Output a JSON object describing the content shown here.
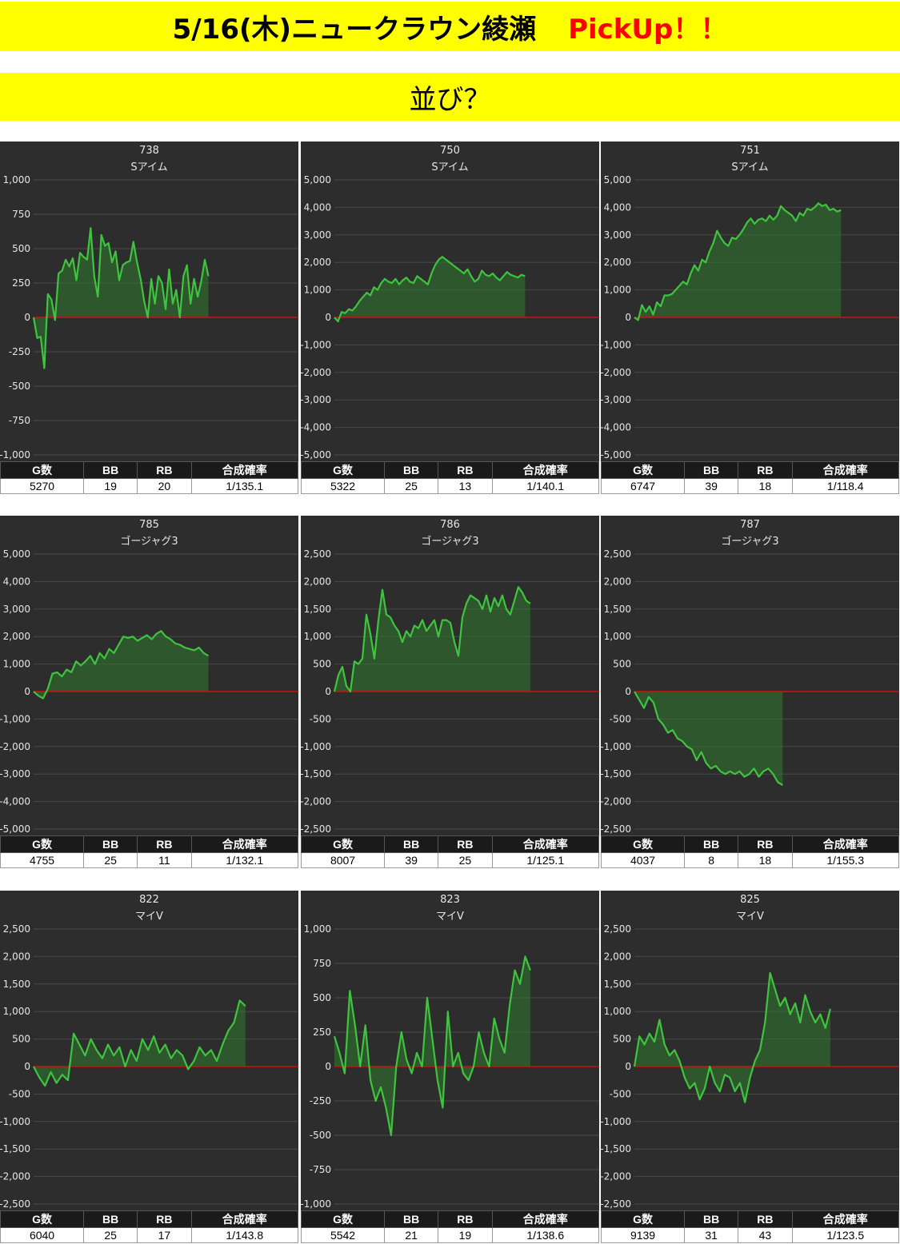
{
  "header": {
    "title": "5/16(木)ニュークラウン綾瀬",
    "pickup": "PickUp！！",
    "subtitle": "並び？"
  },
  "colors": {
    "banner": "#ffff00",
    "pickup_text": "#ff0000",
    "chart_bg": "#2d2d2d",
    "grid": "#4a4a4a",
    "zero_line": "#cc1111",
    "series_line": "#3ec43e",
    "series_fill": "#2f7a2f"
  },
  "table_headers": [
    "G数",
    "BB",
    "RB",
    "合成確率"
  ],
  "chart_data": [
    {
      "type": "area",
      "machine_no": "738",
      "machine_name": "Sアイム",
      "ylim": [
        -1000,
        1000
      ],
      "yticks": [
        1000,
        750,
        500,
        250,
        0,
        -250,
        -500,
        -750,
        -1000
      ],
      "tick_labels": [
        "1,000",
        "750",
        "500",
        "250",
        "0",
        "-250",
        "-500",
        "-750",
        "-1,000"
      ],
      "x_end": 0.66,
      "y": [
        0,
        -150,
        -140,
        -370,
        170,
        130,
        -20,
        320,
        340,
        420,
        370,
        430,
        270,
        470,
        440,
        420,
        650,
        300,
        150,
        600,
        520,
        540,
        400,
        480,
        270,
        380,
        400,
        410,
        550,
        400,
        280,
        120,
        0,
        280,
        100,
        300,
        250,
        60,
        350,
        100,
        200,
        0,
        300,
        380,
        100,
        280,
        150,
        260,
        420,
        300
      ],
      "stats": {
        "games": "5270",
        "bb": "19",
        "rb": "20",
        "prob": "1/135.1"
      }
    },
    {
      "type": "area",
      "machine_no": "750",
      "machine_name": "Sアイム",
      "ylim": [
        -5000,
        5000
      ],
      "yticks": [
        5000,
        4000,
        3000,
        2000,
        1000,
        0,
        -1000,
        -2000,
        -3000,
        -4000,
        -5000
      ],
      "tick_labels": [
        "5,000",
        "4,000",
        "3,000",
        "2,000",
        "1,000",
        "0",
        "-1,000",
        "-2,000",
        "-3,000",
        "-4,000",
        "-5,000"
      ],
      "x_end": 0.72,
      "y": [
        0,
        -150,
        200,
        150,
        300,
        250,
        400,
        600,
        750,
        900,
        800,
        1100,
        1000,
        1250,
        1400,
        1300,
        1250,
        1400,
        1200,
        1350,
        1450,
        1300,
        1250,
        1500,
        1400,
        1300,
        1200,
        1600,
        1900,
        2100,
        2200,
        2100,
        2000,
        1900,
        1800,
        1700,
        1600,
        1750,
        1500,
        1300,
        1400,
        1700,
        1550,
        1500,
        1600,
        1450,
        1350,
        1500,
        1650,
        1550,
        1500,
        1450,
        1550,
        1500
      ],
      "stats": {
        "games": "5322",
        "bb": "25",
        "rb": "13",
        "prob": "1/140.1"
      }
    },
    {
      "type": "area",
      "machine_no": "751",
      "machine_name": "Sアイム",
      "ylim": [
        -5000,
        5000
      ],
      "yticks": [
        5000,
        4000,
        3000,
        2000,
        1000,
        0,
        -1000,
        -2000,
        -3000,
        -4000,
        -5000
      ],
      "tick_labels": [
        "5,000",
        "4,000",
        "3,000",
        "2,000",
        "1,000",
        "0",
        "-1,000",
        "-2,000",
        "-3,000",
        "-4,000",
        "-5,000"
      ],
      "x_end": 0.78,
      "y": [
        0,
        -100,
        450,
        200,
        400,
        100,
        550,
        400,
        800,
        800,
        850,
        1000,
        1150,
        1300,
        1200,
        1600,
        1900,
        1700,
        2100,
        2000,
        2400,
        2700,
        3150,
        2900,
        2700,
        2600,
        2900,
        2850,
        3000,
        3200,
        3450,
        3600,
        3400,
        3550,
        3600,
        3500,
        3700,
        3550,
        3700,
        4050,
        3900,
        3800,
        3700,
        3500,
        3800,
        3700,
        3950,
        3900,
        4000,
        4150,
        4050,
        4100,
        3900,
        3950,
        3850,
        3900
      ],
      "stats": {
        "games": "6747",
        "bb": "39",
        "rb": "18",
        "prob": "1/118.4"
      }
    },
    {
      "type": "area",
      "machine_no": "785",
      "machine_name": "ゴージャグ3",
      "ylim": [
        -5000,
        5000
      ],
      "yticks": [
        5000,
        4000,
        3000,
        2000,
        1000,
        0,
        -1000,
        -2000,
        -3000,
        -4000,
        -5000
      ],
      "tick_labels": [
        "5,000",
        "4,000",
        "3,000",
        "2,000",
        "1,000",
        "0",
        "-1,000",
        "-2,000",
        "-3,000",
        "-4,000",
        "-5,000"
      ],
      "x_end": 0.66,
      "y": [
        0,
        -150,
        -250,
        100,
        650,
        700,
        550,
        800,
        700,
        1100,
        950,
        1100,
        1300,
        1000,
        1400,
        1200,
        1550,
        1400,
        1700,
        2000,
        1950,
        2000,
        1850,
        1950,
        2050,
        1900,
        2100,
        2200,
        2000,
        1900,
        1750,
        1700,
        1600,
        1550,
        1500,
        1600,
        1400,
        1300
      ],
      "stats": {
        "games": "4755",
        "bb": "25",
        "rb": "11",
        "prob": "1/132.1"
      }
    },
    {
      "type": "area",
      "machine_no": "786",
      "machine_name": "ゴージャグ3",
      "ylim": [
        -2500,
        2500
      ],
      "yticks": [
        2500,
        2000,
        1500,
        1000,
        500,
        0,
        -500,
        -1000,
        -1500,
        -2000,
        -2500
      ],
      "tick_labels": [
        "2,500",
        "2,000",
        "1,500",
        "1,000",
        "500",
        "0",
        "-500",
        "-1,000",
        "-1,500",
        "-2,000",
        "-2,500"
      ],
      "x_end": 0.74,
      "y": [
        0,
        300,
        450,
        100,
        0,
        550,
        500,
        600,
        1400,
        1050,
        600,
        1300,
        1850,
        1400,
        1350,
        1200,
        1100,
        900,
        1100,
        1000,
        1200,
        1150,
        1300,
        1100,
        1200,
        1300,
        1000,
        1300,
        1300,
        1250,
        900,
        650,
        1350,
        1600,
        1750,
        1700,
        1650,
        1500,
        1750,
        1450,
        1700,
        1550,
        1750,
        1500,
        1400,
        1650,
        1900,
        1800,
        1650,
        1600
      ],
      "stats": {
        "games": "8007",
        "bb": "39",
        "rb": "25",
        "prob": "1/125.1"
      }
    },
    {
      "type": "area",
      "machine_no": "787",
      "machine_name": "ゴージャグ3",
      "ylim": [
        -2500,
        2500
      ],
      "yticks": [
        2500,
        2000,
        1500,
        1000,
        500,
        0,
        -500,
        -1000,
        -1500,
        -2000,
        -2500
      ],
      "tick_labels": [
        "2,500",
        "2,000",
        "1,500",
        "1,000",
        "500",
        "0",
        "-500",
        "-1,000",
        "-1,500",
        "-2,000",
        "-2,500"
      ],
      "x_end": 0.56,
      "y": [
        0,
        -150,
        -300,
        -100,
        -200,
        -500,
        -600,
        -750,
        -700,
        -850,
        -900,
        -1000,
        -1050,
        -1250,
        -1100,
        -1300,
        -1400,
        -1350,
        -1450,
        -1500,
        -1450,
        -1500,
        -1450,
        -1550,
        -1500,
        -1400,
        -1550,
        -1450,
        -1400,
        -1500,
        -1650,
        -1700
      ],
      "stats": {
        "games": "4037",
        "bb": "8",
        "rb": "18",
        "prob": "1/155.3"
      }
    },
    {
      "type": "area",
      "machine_no": "822",
      "machine_name": "マイV",
      "ylim": [
        -2500,
        2500
      ],
      "yticks": [
        2500,
        2000,
        1500,
        1000,
        500,
        0,
        -500,
        -1000,
        -1500,
        -2000,
        -2500
      ],
      "tick_labels": [
        "2,500",
        "2,000",
        "1,500",
        "1,000",
        "500",
        "0",
        "-500",
        "-1,000",
        "-1,500",
        "-2,000",
        "-2,500"
      ],
      "x_end": 0.8,
      "y": [
        0,
        -200,
        -350,
        -100,
        -300,
        -150,
        -250,
        600,
        400,
        200,
        500,
        300,
        150,
        400,
        200,
        350,
        0,
        300,
        100,
        500,
        300,
        550,
        250,
        400,
        150,
        300,
        200,
        -50,
        100,
        350,
        200,
        300,
        100,
        400,
        650,
        800,
        1200,
        1100
      ],
      "stats": {
        "games": "6040",
        "bb": "25",
        "rb": "17",
        "prob": "1/143.8"
      }
    },
    {
      "type": "area",
      "machine_no": "823",
      "machine_name": "マイV",
      "ylim": [
        -1000,
        1000
      ],
      "yticks": [
        1000,
        750,
        500,
        250,
        0,
        -250,
        -500,
        -750,
        -1000
      ],
      "tick_labels": [
        "1,000",
        "750",
        "500",
        "250",
        "0",
        "-250",
        "-500",
        "-750",
        "-1,000"
      ],
      "x_end": 0.74,
      "y": [
        220,
        100,
        -50,
        550,
        300,
        0,
        300,
        -100,
        -250,
        -150,
        -300,
        -500,
        0,
        250,
        50,
        -50,
        100,
        0,
        500,
        200,
        -100,
        -300,
        400,
        0,
        100,
        -50,
        -100,
        0,
        250,
        100,
        0,
        350,
        200,
        100,
        450,
        700,
        600,
        800,
        700
      ],
      "stats": {
        "games": "5542",
        "bb": "21",
        "rb": "19",
        "prob": "1/138.6"
      }
    },
    {
      "type": "area",
      "machine_no": "825",
      "machine_name": "マイV",
      "ylim": [
        -2500,
        2500
      ],
      "yticks": [
        2500,
        2000,
        1500,
        1000,
        500,
        0,
        -500,
        -1000,
        -1500,
        -2000,
        -2500
      ],
      "tick_labels": [
        "2,500",
        "2,000",
        "1,500",
        "1,000",
        "500",
        "0",
        "-500",
        "-1,000",
        "-1,500",
        "-2,000",
        "-2,500"
      ],
      "x_end": 0.74,
      "y": [
        0,
        550,
        400,
        600,
        450,
        850,
        400,
        200,
        300,
        100,
        -200,
        -400,
        -300,
        -600,
        -400,
        0,
        -300,
        -450,
        -150,
        -200,
        -450,
        -300,
        -650,
        -200,
        100,
        300,
        800,
        1700,
        1400,
        1100,
        1250,
        950,
        1150,
        800,
        1300,
        1000,
        800,
        950,
        700,
        1050
      ],
      "stats": {
        "games": "9139",
        "bb": "31",
        "rb": "43",
        "prob": "1/123.5"
      }
    }
  ]
}
